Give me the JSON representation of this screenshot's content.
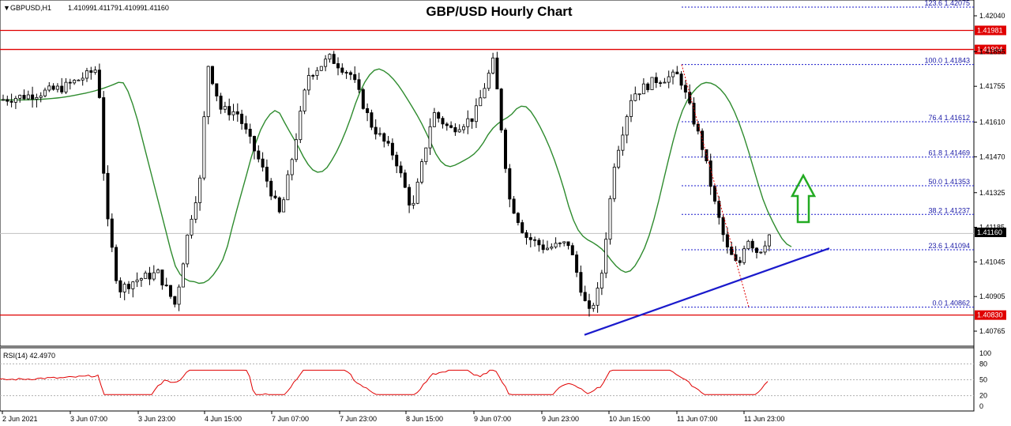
{
  "chart_data": [
    {
      "type": "candlestick",
      "symbol": "GBPUSD,H1",
      "title": "GBP/USD Hourly Chart",
      "ohlc": [
        "1.41099",
        "1.41179",
        "1.41099",
        "1.41160"
      ],
      "last_price": "1.41160",
      "y_range": [
        1.4071,
        1.4213
      ],
      "y_ticks": [
        "1.42040",
        "1.41895",
        "1.41755",
        "1.41610",
        "1.41470",
        "1.41325",
        "1.41185",
        "1.41045",
        "1.40905",
        "1.40765"
      ],
      "x_labels": [
        "2 Jun 2021",
        "3 Jun 07:00",
        "3 Jun 23:00",
        "4 Jun 15:00",
        "7 Jun 07:00",
        "7 Jun 23:00",
        "8 Jun 15:00",
        "9 Jun 07:00",
        "9 Jun 23:00",
        "10 Jun 15:00",
        "11 Jun 07:00",
        "11 Jun 23:00"
      ],
      "resistance_levels": [
        {
          "value": 1.41981,
          "label": "1.41981"
        },
        {
          "value": 1.41904,
          "label": "1.41904"
        }
      ],
      "support_levels": [
        {
          "value": 1.4083,
          "label": "1.40830"
        }
      ],
      "fib_levels": [
        {
          "label": "123.6 1.42075",
          "value": 1.42075
        },
        {
          "label": "100.0 1.41843",
          "value": 1.41843
        },
        {
          "label": "76.4 1.41612",
          "value": 1.41612
        },
        {
          "label": "61.8 1.41469",
          "value": 1.41469
        },
        {
          "label": "50.0 1.41353",
          "value": 1.41353
        },
        {
          "label": "38.2 1.41237",
          "value": 1.41237
        },
        {
          "label": "23.6 1.41094",
          "value": 1.41094
        },
        {
          "label": "0.0 1.40862",
          "value": 1.40862
        }
      ],
      "trendline": {
        "from": {
          "x": "9 Jun 23:00",
          "y": 1.4075
        },
        "to": {
          "x": "12 Jun",
          "y": 1.411
        },
        "color": "#1a1acc"
      },
      "moving_average_color": "#2e8b2e",
      "candle_up_color": "#ffffff",
      "candle_down_color": "#000000",
      "level_color": "#e00000",
      "fib_color": "#1a1acc",
      "arrow_color": "#22aa22"
    },
    {
      "type": "line",
      "indicator": "RSI(14) 42.4970",
      "value": 42.497,
      "y_range": [
        0,
        100
      ],
      "y_ticks": [
        "100",
        "80",
        "50",
        "20",
        "0"
      ],
      "levels": [
        80,
        50,
        20
      ],
      "line_color": "#e00000"
    }
  ]
}
